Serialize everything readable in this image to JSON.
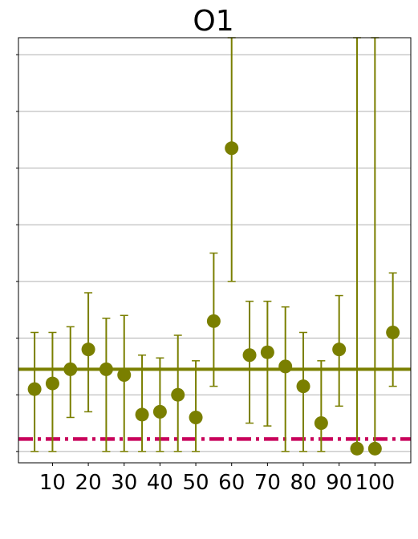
{
  "chart_data": {
    "type": "scatter",
    "title": "O1",
    "xlabel": "",
    "ylabel": "",
    "xlim": [
      0.5,
      110
    ],
    "ylim": [
      -0.2,
      7.3
    ],
    "x_ticks": [
      10,
      20,
      30,
      40,
      50,
      60,
      70,
      80,
      90,
      100
    ],
    "x_tick_labels": [
      "10",
      "20",
      "30",
      "40",
      "50",
      "60",
      "70",
      "80",
      "90",
      "100"
    ],
    "y_gridlines": [
      0,
      1,
      2,
      3,
      4,
      5,
      6,
      7
    ],
    "y_tick_labels_visible": false,
    "grid": "horizontal",
    "legend": "none",
    "series": [
      {
        "marker_color": "#7a7f00",
        "points": [
          {
            "x": 5,
            "y": 1.1,
            "err_low": 0.0,
            "err_high": 2.1
          },
          {
            "x": 10,
            "y": 1.2,
            "err_low": 0.0,
            "err_high": 2.1
          },
          {
            "x": 15,
            "y": 1.45,
            "err_low": 0.6,
            "err_high": 2.2
          },
          {
            "x": 20,
            "y": 1.8,
            "err_low": 0.7,
            "err_high": 2.8
          },
          {
            "x": 25,
            "y": 1.45,
            "err_low": 0.0,
            "err_high": 2.35
          },
          {
            "x": 30,
            "y": 1.35,
            "err_low": 0.0,
            "err_high": 2.4
          },
          {
            "x": 35,
            "y": 0.65,
            "err_low": 0.0,
            "err_high": 1.7
          },
          {
            "x": 40,
            "y": 0.7,
            "err_low": 0.0,
            "err_high": 1.65
          },
          {
            "x": 45,
            "y": 1.0,
            "err_low": 0.0,
            "err_high": 2.05
          },
          {
            "x": 50,
            "y": 0.6,
            "err_low": 0.0,
            "err_high": 1.6
          },
          {
            "x": 55,
            "y": 2.3,
            "err_low": 1.15,
            "err_high": 3.5
          },
          {
            "x": 60,
            "y": 5.35,
            "err_low": 3.0,
            "err_high": 7.3
          },
          {
            "x": 65,
            "y": 1.7,
            "err_low": 0.5,
            "err_high": 2.65
          },
          {
            "x": 70,
            "y": 1.75,
            "err_low": 0.45,
            "err_high": 2.65
          },
          {
            "x": 75,
            "y": 1.5,
            "err_low": 0.0,
            "err_high": 2.55
          },
          {
            "x": 80,
            "y": 1.15,
            "err_low": 0.0,
            "err_high": 2.1
          },
          {
            "x": 85,
            "y": 0.5,
            "err_low": 0.0,
            "err_high": 1.6
          },
          {
            "x": 90,
            "y": 1.8,
            "err_low": 0.8,
            "err_high": 2.75
          },
          {
            "x": 95,
            "y": 0.05,
            "err_low": 0.0,
            "err_high": 7.3
          },
          {
            "x": 100,
            "y": 0.05,
            "err_low": 0.0,
            "err_high": 7.3
          },
          {
            "x": 105,
            "y": 2.1,
            "err_low": 1.15,
            "err_high": 3.15
          }
        ]
      }
    ],
    "reference_lines": [
      {
        "y": 1.45,
        "style": "solid",
        "color": "#7a7f00"
      },
      {
        "y": 0.22,
        "style": "dashdot",
        "color": "#c8005a"
      }
    ]
  }
}
